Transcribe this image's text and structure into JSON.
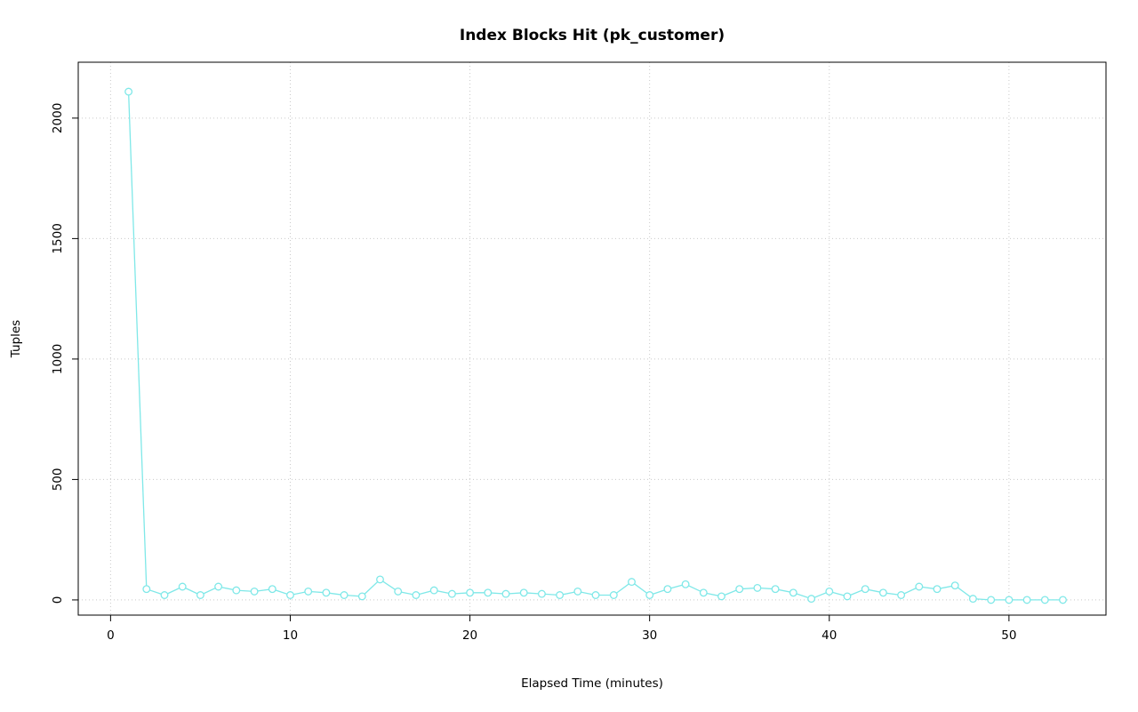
{
  "chart_data": {
    "type": "line",
    "title": "Index Blocks Hit (pk_customer)",
    "xlabel": "Elapsed Time (minutes)",
    "ylabel": "Tuples",
    "legend": "none",
    "grid": true,
    "grid_style": "dotted",
    "grid_color": "#c9c9c9",
    "line_color": "#7fe8e8",
    "marker": "open-circle",
    "axis_color": "#000000",
    "xticks": [
      0,
      10,
      20,
      30,
      40,
      50
    ],
    "yticks": [
      0,
      500,
      1000,
      1500,
      2000
    ],
    "xlim": [
      -1.8,
      55.4
    ],
    "ylim": [
      -63,
      2232
    ],
    "x": [
      1,
      2,
      3,
      4,
      5,
      6,
      7,
      8,
      9,
      10,
      11,
      12,
      13,
      14,
      15,
      16,
      17,
      18,
      19,
      20,
      21,
      22,
      23,
      24,
      25,
      26,
      27,
      28,
      29,
      30,
      31,
      32,
      33,
      34,
      35,
      36,
      37,
      38,
      39,
      40,
      41,
      42,
      43,
      44,
      45,
      46,
      47,
      48,
      49,
      50,
      51,
      52,
      53
    ],
    "y": [
      2110,
      45,
      20,
      55,
      20,
      55,
      40,
      35,
      45,
      20,
      35,
      30,
      20,
      15,
      85,
      35,
      20,
      40,
      25,
      30,
      30,
      25,
      30,
      25,
      20,
      35,
      20,
      20,
      75,
      20,
      45,
      65,
      30,
      15,
      45,
      50,
      45,
      30,
      5,
      35,
      15,
      45,
      30,
      20,
      55,
      45,
      60,
      5,
      0,
      0,
      0,
      0,
      0
    ],
    "series": [
      {
        "name": "index blocks hit (pk_customer)"
      }
    ]
  }
}
